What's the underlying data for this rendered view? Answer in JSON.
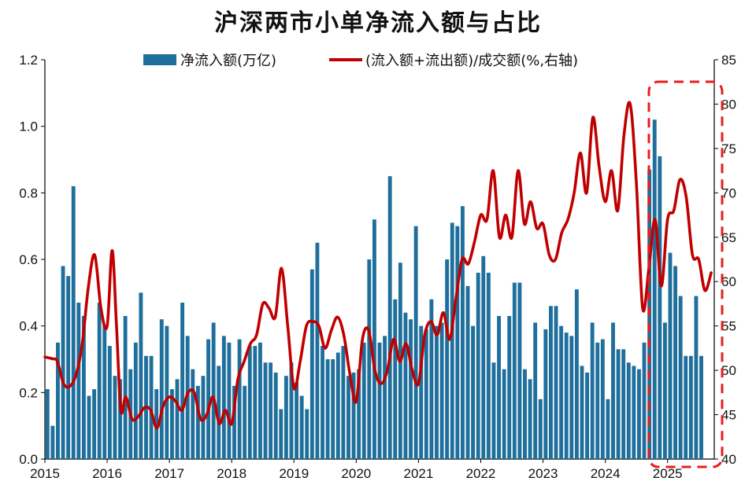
{
  "chart_data": {
    "type": "bar+line",
    "title": "沪深两市小单净流入额与占比",
    "legend": {
      "bar_label": "净流入额(万亿)",
      "line_label": "(流入额+流出额)/成交额(%,右轴)",
      "placement": "top-center"
    },
    "x_tick_labels": [
      "2015",
      "2016",
      "2017",
      "2018",
      "2019",
      "2020",
      "2021",
      "2022",
      "2023",
      "2024",
      "2025"
    ],
    "x_range": [
      2015.0,
      2025.75
    ],
    "y_left": {
      "ticks": [
        "0.0",
        "0.2",
        "0.4",
        "0.6",
        "0.8",
        "1.0",
        "1.2"
      ],
      "ylim": [
        0,
        1.2
      ]
    },
    "y_right": {
      "ticks": [
        "40",
        "45",
        "50",
        "55",
        "60",
        "65",
        "70",
        "75",
        "80",
        "85"
      ],
      "ylim": [
        40,
        85
      ]
    },
    "series": [
      {
        "name": "净流入额(万亿)",
        "kind": "bar",
        "color": "#1f6f9c",
        "start": 2015.0,
        "step_months": 1,
        "values": [
          0.21,
          0.1,
          0.35,
          0.58,
          0.55,
          0.82,
          0.47,
          0.43,
          0.19,
          0.21,
          0.47,
          0.4,
          0.34,
          0.25,
          0.24,
          0.43,
          0.27,
          0.35,
          0.5,
          0.31,
          0.31,
          0.21,
          0.42,
          0.4,
          0.21,
          0.24,
          0.47,
          0.37,
          0.27,
          0.22,
          0.25,
          0.36,
          0.41,
          0.28,
          0.37,
          0.35,
          0.22,
          0.36,
          0.22,
          0.34,
          0.34,
          0.35,
          0.29,
          0.29,
          0.26,
          0.15,
          0.25,
          0.29,
          0.23,
          0.19,
          0.15,
          0.57,
          0.65,
          0.34,
          0.3,
          0.3,
          0.32,
          0.34,
          0.25,
          0.26,
          0.27,
          0.35,
          0.6,
          0.72,
          0.35,
          0.37,
          0.85,
          0.48,
          0.59,
          0.44,
          0.42,
          0.7,
          0.4,
          0.39,
          0.48,
          0.4,
          0.41,
          0.6,
          0.71,
          0.7,
          0.76,
          0.52,
          0.4,
          0.56,
          0.61,
          0.56,
          0.29,
          0.43,
          0.27,
          0.43,
          0.53,
          0.53,
          0.27,
          0.24,
          0.41,
          0.18,
          0.39,
          0.46,
          0.46,
          0.4,
          0.38,
          0.37,
          0.51,
          0.28,
          0.26,
          0.41,
          0.35,
          0.36,
          0.18,
          0.41,
          0.33,
          0.33,
          0.29,
          0.28,
          0.27,
          0.35,
          0.87,
          1.02,
          0.91,
          0.41,
          0.62,
          0.58,
          0.49,
          0.31,
          0.31,
          0.49,
          0.31
        ]
      },
      {
        "name": "(流入额+流出额)/成交额(%,右轴)",
        "kind": "line",
        "color": "#c00000",
        "x": [
          2015.0,
          2015.12,
          2015.2,
          2015.3,
          2015.4,
          2015.5,
          2015.6,
          2015.7,
          2015.8,
          2015.9,
          2016.0,
          2016.08,
          2016.15,
          2016.22,
          2016.3,
          2016.4,
          2016.5,
          2016.6,
          2016.7,
          2016.8,
          2016.9,
          2017.0,
          2017.1,
          2017.2,
          2017.3,
          2017.4,
          2017.5,
          2017.6,
          2017.7,
          2017.8,
          2017.9,
          2018.0,
          2018.1,
          2018.2,
          2018.3,
          2018.4,
          2018.5,
          2018.6,
          2018.7,
          2018.8,
          2018.9,
          2019.0,
          2019.1,
          2019.2,
          2019.3,
          2019.4,
          2019.5,
          2019.6,
          2019.7,
          2019.8,
          2019.9,
          2020.0,
          2020.1,
          2020.2,
          2020.3,
          2020.4,
          2020.5,
          2020.6,
          2020.7,
          2020.8,
          2020.9,
          2021.0,
          2021.1,
          2021.2,
          2021.3,
          2021.4,
          2021.5,
          2021.6,
          2021.7,
          2021.8,
          2021.9,
          2022.0,
          2022.1,
          2022.2,
          2022.3,
          2022.4,
          2022.5,
          2022.6,
          2022.7,
          2022.8,
          2022.9,
          2023.0,
          2023.1,
          2023.2,
          2023.3,
          2023.4,
          2023.5,
          2023.6,
          2023.7,
          2023.8,
          2023.9,
          2024.0,
          2024.1,
          2024.2,
          2024.3,
          2024.4,
          2024.5,
          2024.6,
          2024.7,
          2024.8,
          2024.9,
          2025.0,
          2025.1,
          2025.2,
          2025.3,
          2025.4,
          2025.5,
          2025.6,
          2025.7
        ],
        "values": [
          51.5,
          51.3,
          51.0,
          48.5,
          48.2,
          49.5,
          53.0,
          59.5,
          63.0,
          57.0,
          55.0,
          63.5,
          55.0,
          45.5,
          47.0,
          44.5,
          44.8,
          45.8,
          45.5,
          43.5,
          46.0,
          47.0,
          46.5,
          45.5,
          47.5,
          47.5,
          44.5,
          45.0,
          47.0,
          44.0,
          45.5,
          44.0,
          49.0,
          51.0,
          53.0,
          54.0,
          57.5,
          57.0,
          56.0,
          61.5,
          55.0,
          48.0,
          51.0,
          55.0,
          55.5,
          55.0,
          52.5,
          54.5,
          56.0,
          54.0,
          49.5,
          46.5,
          53.5,
          54.5,
          50.0,
          48.5,
          50.0,
          53.5,
          51.0,
          53.0,
          50.0,
          48.5,
          54.0,
          55.5,
          54.0,
          56.5,
          53.5,
          58.0,
          62.5,
          62.0,
          64.5,
          67.5,
          67.0,
          72.5,
          65.0,
          67.5,
          65.0,
          72.5,
          66.5,
          69.0,
          66.0,
          66.5,
          63.0,
          62.5,
          65.5,
          67.0,
          70.0,
          74.5,
          70.0,
          78.5,
          73.0,
          69.0,
          72.5,
          68.0,
          76.5,
          80.0,
          71.0,
          57.0,
          61.5,
          67.0,
          59.5,
          67.0,
          68.0,
          71.5,
          69.5,
          63.0,
          62.5,
          59.0,
          61.0
        ]
      }
    ],
    "highlight": {
      "style": "red dashed box",
      "from": 2024.7,
      "to": 2025.75
    }
  }
}
